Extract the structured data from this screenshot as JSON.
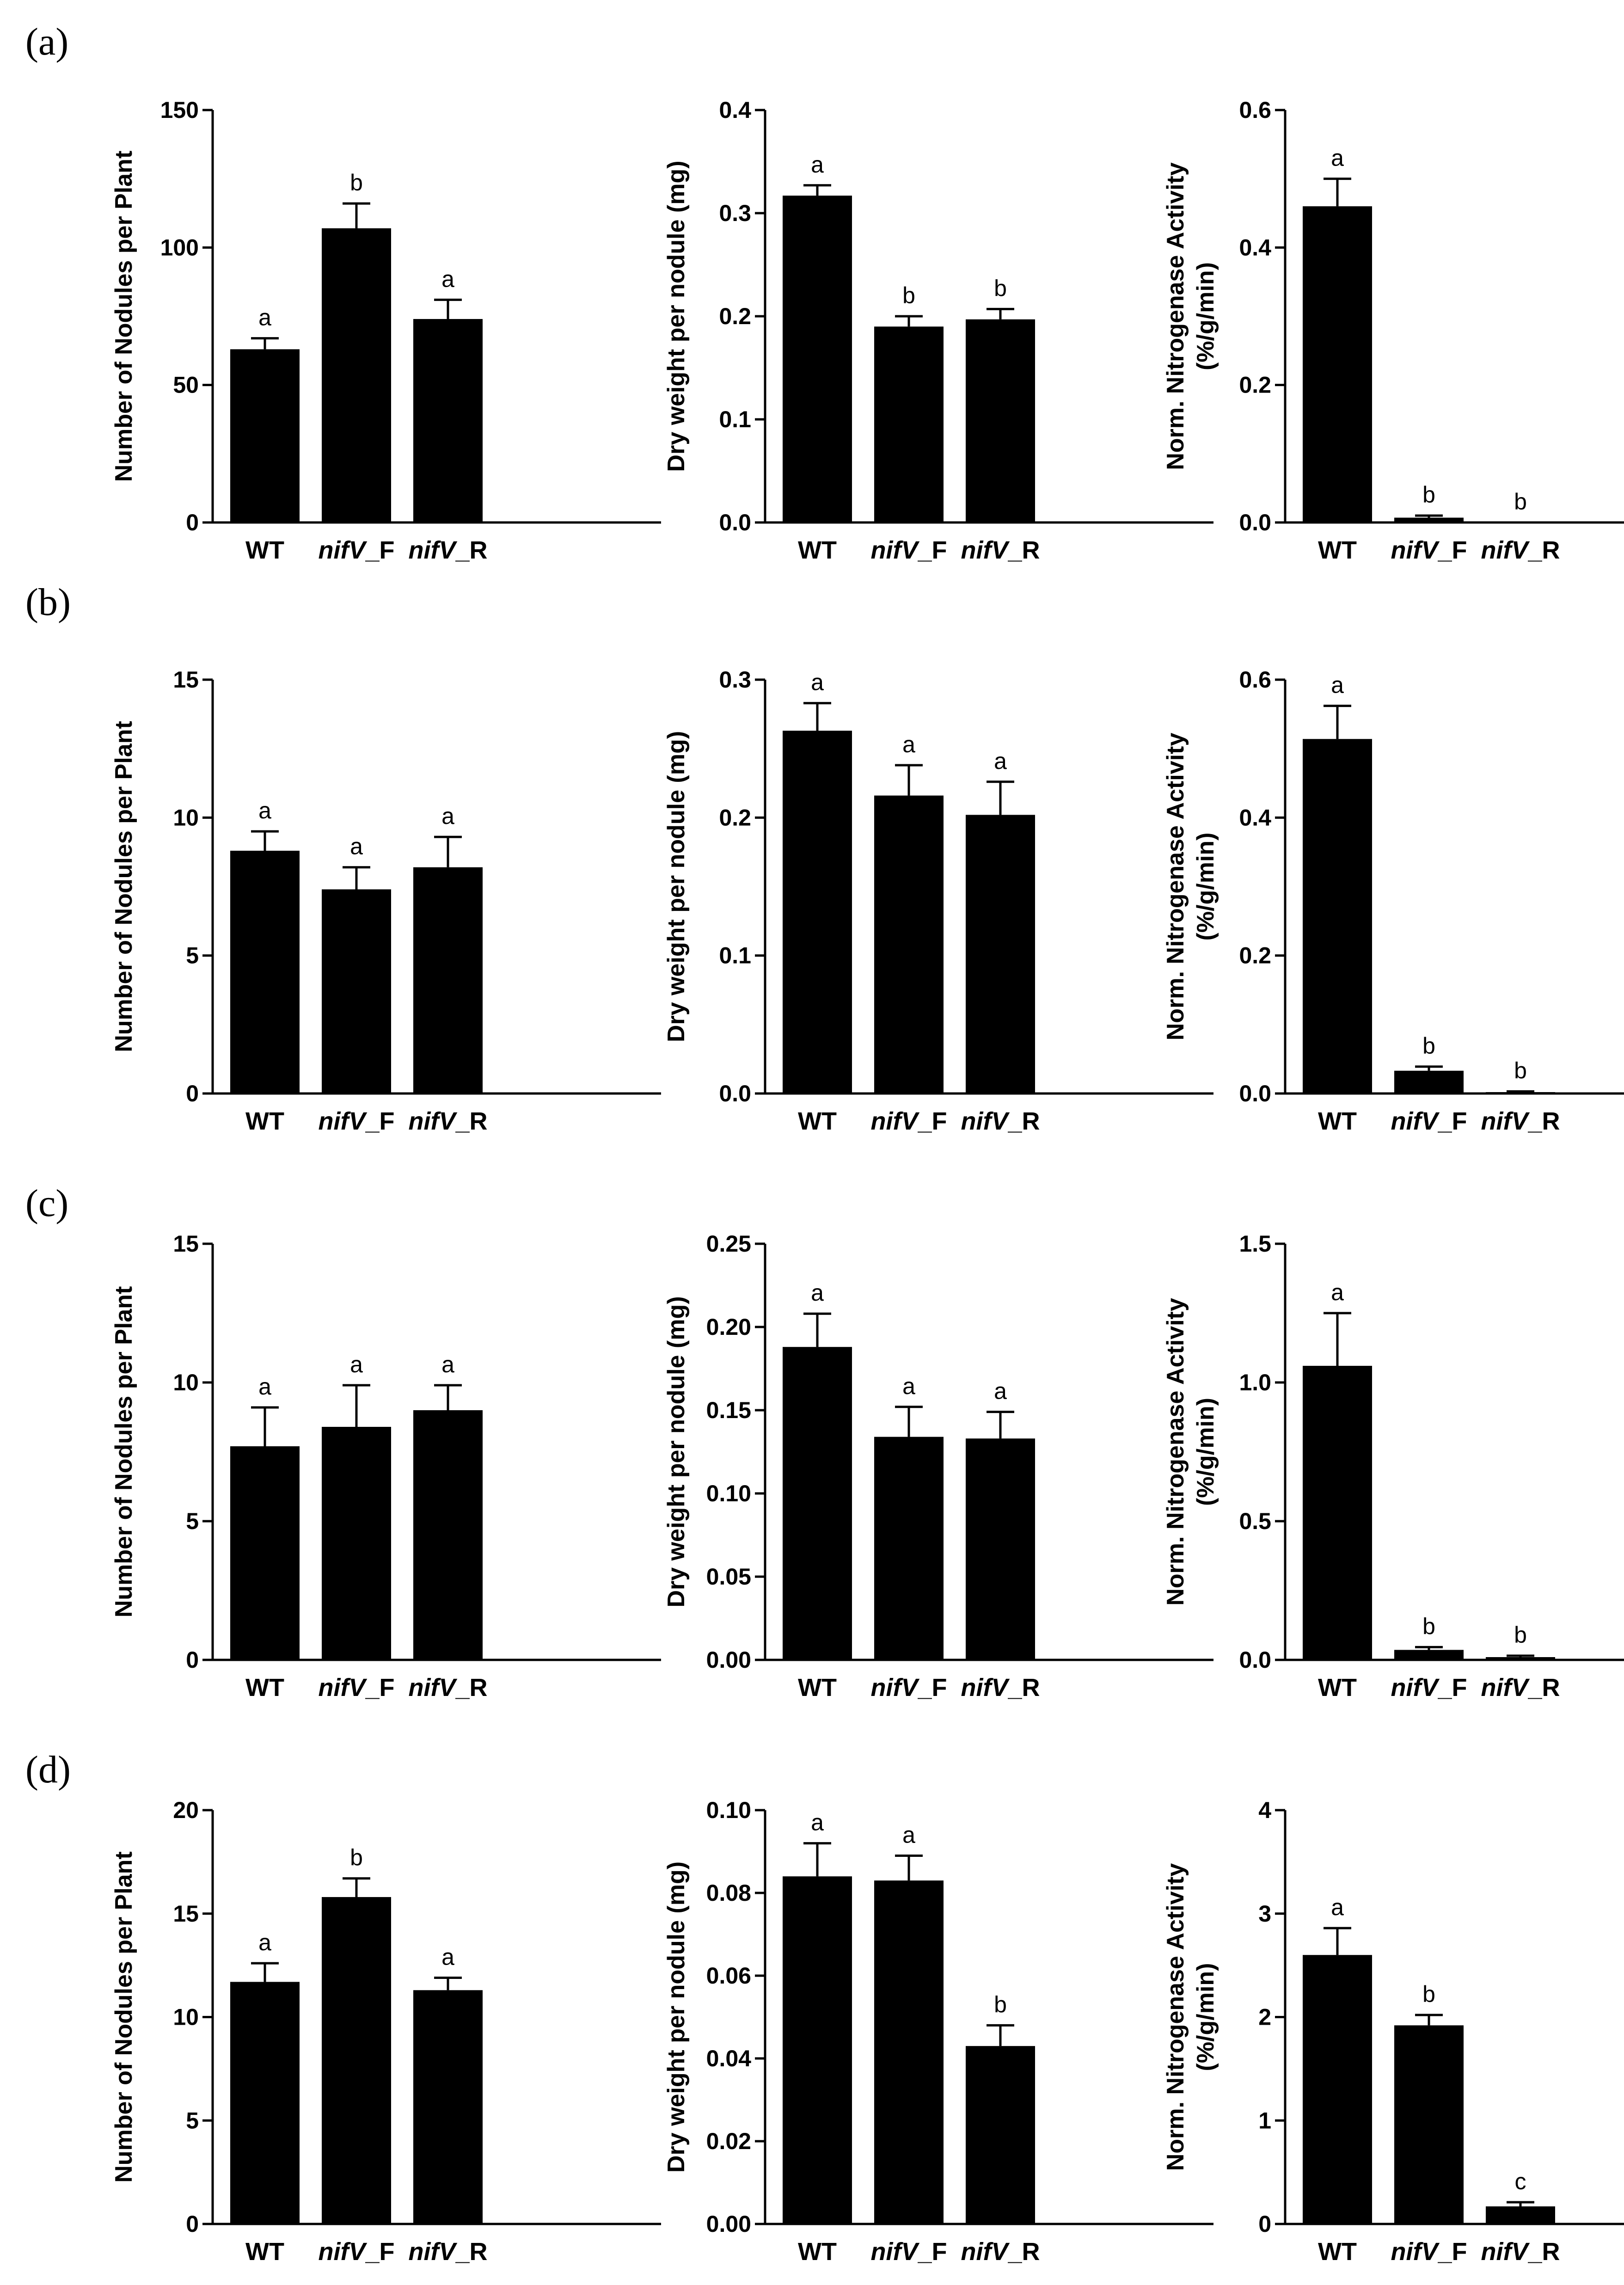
{
  "panel_labels": [
    "(a)",
    "(b)",
    "(c)",
    "(d)"
  ],
  "chart_data": [
    {
      "type": "bar",
      "panel": "(a)",
      "column": 1,
      "categories": [
        "WT",
        "nifV_F",
        "nifV_R"
      ],
      "category_parts": [
        [
          "WT",
          ""
        ],
        [
          "nifV",
          "_F"
        ],
        [
          "nifV",
          "_R"
        ]
      ],
      "values": [
        63,
        107,
        74
      ],
      "errors": [
        4,
        9,
        7
      ],
      "significance": [
        "a",
        "b",
        "a"
      ],
      "ylabel": "Number of Nodules per Plant",
      "ylabel2": "",
      "ylim": [
        0,
        150
      ],
      "yticks": [
        "0",
        "50",
        "100",
        "150"
      ],
      "ytick_values": [
        0,
        50,
        100,
        150
      ]
    },
    {
      "type": "bar",
      "panel": "(a)",
      "column": 2,
      "categories": [
        "WT",
        "nifV_F",
        "nifV_R"
      ],
      "category_parts": [
        [
          "WT",
          ""
        ],
        [
          "nifV",
          "_F"
        ],
        [
          "nifV",
          "_R"
        ]
      ],
      "values": [
        0.317,
        0.19,
        0.197
      ],
      "errors": [
        0.01,
        0.01,
        0.01
      ],
      "significance": [
        "a",
        "b",
        "b"
      ],
      "ylabel": "Dry weight per nodule (mg)",
      "ylabel2": "",
      "ylim": [
        0,
        0.4
      ],
      "yticks": [
        "0.0",
        "0.1",
        "0.2",
        "0.3",
        "0.4"
      ],
      "ytick_values": [
        0,
        0.1,
        0.2,
        0.3,
        0.4
      ]
    },
    {
      "type": "bar",
      "panel": "(a)",
      "column": 3,
      "categories": [
        "WT",
        "nifV_F",
        "nifV_R"
      ],
      "category_parts": [
        [
          "WT",
          ""
        ],
        [
          "nifV",
          "_F"
        ],
        [
          "nifV",
          "_R"
        ]
      ],
      "values": [
        0.46,
        0.007,
        0.0
      ],
      "errors": [
        0.04,
        0.003,
        0.0
      ],
      "significance": [
        "a",
        "b",
        "b"
      ],
      "ylabel": "Norm. Nitrogenase Activity",
      "ylabel2": "(%/g/min)",
      "ylim": [
        0,
        0.6
      ],
      "yticks": [
        "0.0",
        "0.2",
        "0.4",
        "0.6"
      ],
      "ytick_values": [
        0,
        0.2,
        0.4,
        0.6
      ]
    },
    {
      "type": "bar",
      "panel": "(b)",
      "column": 1,
      "categories": [
        "WT",
        "nifV_F",
        "nifV_R"
      ],
      "category_parts": [
        [
          "WT",
          ""
        ],
        [
          "nifV",
          "_F"
        ],
        [
          "nifV",
          "_R"
        ]
      ],
      "values": [
        8.8,
        7.4,
        8.2
      ],
      "errors": [
        0.7,
        0.8,
        1.1
      ],
      "significance": [
        "a",
        "a",
        "a"
      ],
      "ylabel": "Number of Nodules per Plant",
      "ylabel2": "",
      "ylim": [
        0,
        15
      ],
      "yticks": [
        "0",
        "5",
        "10",
        "15"
      ],
      "ytick_values": [
        0,
        5,
        10,
        15
      ]
    },
    {
      "type": "bar",
      "panel": "(b)",
      "column": 2,
      "categories": [
        "WT",
        "nifV_F",
        "nifV_R"
      ],
      "category_parts": [
        [
          "WT",
          ""
        ],
        [
          "nifV",
          "_F"
        ],
        [
          "nifV",
          "_R"
        ]
      ],
      "values": [
        0.263,
        0.216,
        0.202
      ],
      "errors": [
        0.02,
        0.022,
        0.024
      ],
      "significance": [
        "a",
        "a",
        "a"
      ],
      "ylabel": "Dry weight per nodule (mg)",
      "ylabel2": "",
      "ylim": [
        0,
        0.3
      ],
      "yticks": [
        "0.0",
        "0.1",
        "0.2",
        "0.3"
      ],
      "ytick_values": [
        0,
        0.1,
        0.2,
        0.3
      ]
    },
    {
      "type": "bar",
      "panel": "(b)",
      "column": 3,
      "categories": [
        "WT",
        "nifV_F",
        "nifV_R"
      ],
      "category_parts": [
        [
          "WT",
          ""
        ],
        [
          "nifV",
          "_F"
        ],
        [
          "nifV",
          "_R"
        ]
      ],
      "values": [
        0.514,
        0.033,
        0.002
      ],
      "errors": [
        0.048,
        0.006,
        0.001
      ],
      "significance": [
        "a",
        "b",
        "b"
      ],
      "ylabel": "Norm. Nitrogenase Activity",
      "ylabel2": "(%/g/min)",
      "ylim": [
        0,
        0.6
      ],
      "yticks": [
        "0.0",
        "0.2",
        "0.4",
        "0.6"
      ],
      "ytick_values": [
        0,
        0.2,
        0.4,
        0.6
      ]
    },
    {
      "type": "bar",
      "panel": "(c)",
      "column": 1,
      "categories": [
        "WT",
        "nifV_F",
        "nifV_R"
      ],
      "category_parts": [
        [
          "WT",
          ""
        ],
        [
          "nifV",
          "_F"
        ],
        [
          "nifV",
          "_R"
        ]
      ],
      "values": [
        7.7,
        8.4,
        9.0
      ],
      "errors": [
        1.4,
        1.5,
        0.9
      ],
      "significance": [
        "a",
        "a",
        "a"
      ],
      "ylabel": "Number of Nodules per Plant",
      "ylabel2": "",
      "ylim": [
        0,
        15
      ],
      "yticks": [
        "0",
        "5",
        "10",
        "15"
      ],
      "ytick_values": [
        0,
        5,
        10,
        15
      ]
    },
    {
      "type": "bar",
      "panel": "(c)",
      "column": 2,
      "categories": [
        "WT",
        "nifV_F",
        "nifV_R"
      ],
      "category_parts": [
        [
          "WT",
          ""
        ],
        [
          "nifV",
          "_F"
        ],
        [
          "nifV",
          "_R"
        ]
      ],
      "values": [
        0.188,
        0.134,
        0.133
      ],
      "errors": [
        0.02,
        0.018,
        0.016
      ],
      "significance": [
        "a",
        "a",
        "a"
      ],
      "ylabel": "Dry weight per nodule (mg)",
      "ylabel2": "",
      "ylim": [
        0,
        0.25
      ],
      "yticks": [
        "0.00",
        "0.05",
        "0.10",
        "0.15",
        "0.20",
        "0.25"
      ],
      "ytick_values": [
        0,
        0.05,
        0.1,
        0.15,
        0.2,
        0.25
      ]
    },
    {
      "type": "bar",
      "panel": "(c)",
      "column": 3,
      "categories": [
        "WT",
        "nifV_F",
        "nifV_R"
      ],
      "category_parts": [
        [
          "WT",
          ""
        ],
        [
          "nifV",
          "_F"
        ],
        [
          "nifV",
          "_R"
        ]
      ],
      "values": [
        1.06,
        0.036,
        0.01
      ],
      "errors": [
        0.19,
        0.01,
        0.005
      ],
      "significance": [
        "a",
        "b",
        "b"
      ],
      "ylabel": "Norm. Nitrogenase Activity",
      "ylabel2": "(%/g/min)",
      "ylim": [
        0,
        1.5
      ],
      "yticks": [
        "0.0",
        "0.5",
        "1.0",
        "1.5"
      ],
      "ytick_values": [
        0,
        0.5,
        1.0,
        1.5
      ]
    },
    {
      "type": "bar",
      "panel": "(d)",
      "column": 1,
      "categories": [
        "WT",
        "nifV_F",
        "nifV_R"
      ],
      "category_parts": [
        [
          "WT",
          ""
        ],
        [
          "nifV",
          "_F"
        ],
        [
          "nifV",
          "_R"
        ]
      ],
      "values": [
        11.7,
        15.8,
        11.3
      ],
      "errors": [
        0.9,
        0.9,
        0.6
      ],
      "significance": [
        "a",
        "b",
        "a"
      ],
      "ylabel": "Number of Nodules per Plant",
      "ylabel2": "",
      "ylim": [
        0,
        20
      ],
      "yticks": [
        "0",
        "5",
        "10",
        "15",
        "20"
      ],
      "ytick_values": [
        0,
        5,
        10,
        15,
        20
      ]
    },
    {
      "type": "bar",
      "panel": "(d)",
      "column": 2,
      "categories": [
        "WT",
        "nifV_F",
        "nifV_R"
      ],
      "category_parts": [
        [
          "WT",
          ""
        ],
        [
          "nifV",
          "_F"
        ],
        [
          "nifV",
          "_R"
        ]
      ],
      "values": [
        0.084,
        0.083,
        0.043
      ],
      "errors": [
        0.008,
        0.006,
        0.005
      ],
      "significance": [
        "a",
        "a",
        "b"
      ],
      "ylabel": "Dry weight per nodule (mg)",
      "ylabel2": "",
      "ylim": [
        0,
        0.1
      ],
      "yticks": [
        "0.00",
        "0.02",
        "0.04",
        "0.06",
        "0.08",
        "0.10"
      ],
      "ytick_values": [
        0,
        0.02,
        0.04,
        0.06,
        0.08,
        0.1
      ]
    },
    {
      "type": "bar",
      "panel": "(d)",
      "column": 3,
      "categories": [
        "WT",
        "nifV_F",
        "nifV_R"
      ],
      "category_parts": [
        [
          "WT",
          ""
        ],
        [
          "nifV",
          "_F"
        ],
        [
          "nifV",
          "_R"
        ]
      ],
      "values": [
        2.6,
        1.92,
        0.17
      ],
      "errors": [
        0.26,
        0.1,
        0.04
      ],
      "significance": [
        "a",
        "b",
        "c"
      ],
      "ylabel": "Norm. Nitrogenase Activity",
      "ylabel2": "(%/g/min)",
      "ylim": [
        0,
        4
      ],
      "yticks": [
        "0",
        "1",
        "2",
        "3",
        "4"
      ],
      "ytick_values": [
        0,
        1,
        2,
        3,
        4
      ]
    }
  ]
}
